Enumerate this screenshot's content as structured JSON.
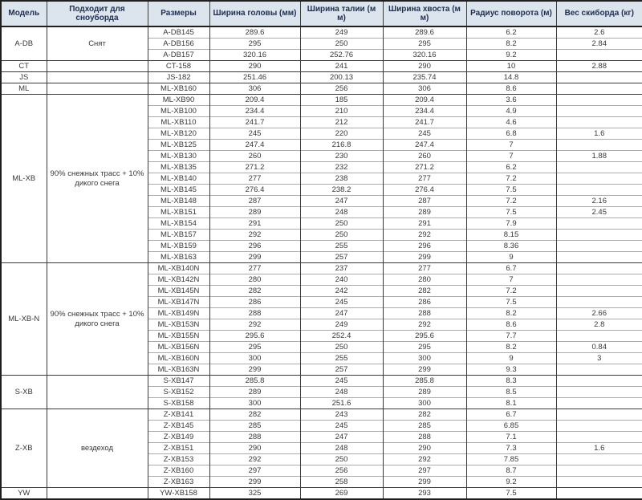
{
  "table": {
    "columns": [
      "Модель",
      "Подходит для сноуборда",
      "Размеры",
      "Ширина головы (мм)",
      "Ширина талии (м м)",
      "Ширина хвоста (м м)",
      "Радиус поворота (м)",
      "Вес скиборда (кг)"
    ],
    "groups": [
      {
        "model": "A-DB",
        "suitable": "Снят",
        "rows": [
          [
            "A-DB145",
            "289.6",
            "249",
            "289.6",
            "6.2",
            "2.6"
          ],
          [
            "A-DB156",
            "295",
            "250",
            "295",
            "8.2",
            "2.84"
          ],
          [
            "A-DB157",
            "320.16",
            "252.76",
            "320.16",
            "9.2",
            ""
          ]
        ]
      },
      {
        "model": "CT",
        "suitable": "",
        "rows": [
          [
            "CT-158",
            "290",
            "241",
            "290",
            "10",
            "2.88"
          ]
        ]
      },
      {
        "model": "JS",
        "suitable": "",
        "rows": [
          [
            "JS-182",
            "251.46",
            "200.13",
            "235.74",
            "14.8",
            ""
          ]
        ]
      },
      {
        "model": "ML",
        "suitable": "",
        "rows": [
          [
            "ML-XB160",
            "306",
            "256",
            "306",
            "8.6",
            ""
          ]
        ]
      },
      {
        "model": "ML-XB",
        "suitable": "90% снежных трасс + 10% дикого снега",
        "rows": [
          [
            "ML-XB90",
            "209.4",
            "185",
            "209.4",
            "3.6",
            ""
          ],
          [
            "ML-XB100",
            "234.4",
            "210",
            "234.4",
            "4.9",
            ""
          ],
          [
            "ML-XB110",
            "241.7",
            "212",
            "241.7",
            "4.6",
            ""
          ],
          [
            "ML-XB120",
            "245",
            "220",
            "245",
            "6.8",
            "1.6"
          ],
          [
            "ML-XB125",
            "247.4",
            "216.8",
            "247.4",
            "7",
            ""
          ],
          [
            "ML-XB130",
            "260",
            "230",
            "260",
            "7",
            "1.88"
          ],
          [
            "ML-XB135",
            "271.2",
            "232",
            "271.2",
            "6.2",
            ""
          ],
          [
            "ML-XB140",
            "277",
            "238",
            "277",
            "7.2",
            ""
          ],
          [
            "ML-XB145",
            "276.4",
            "238.2",
            "276.4",
            "7.5",
            ""
          ],
          [
            "ML-XB148",
            "287",
            "247",
            "287",
            "7.2",
            "2.16"
          ],
          [
            "ML-XB151",
            "289",
            "248",
            "289",
            "7.5",
            "2.45"
          ],
          [
            "ML-XB154",
            "291",
            "250",
            "291",
            "7.9",
            ""
          ],
          [
            "ML-XB157",
            "292",
            "250",
            "292",
            "8.15",
            ""
          ],
          [
            "ML-XB159",
            "296",
            "255",
            "296",
            "8.36",
            ""
          ],
          [
            "ML-XB163",
            "299",
            "257",
            "299",
            "9",
            ""
          ]
        ]
      },
      {
        "model": "ML-XB-N",
        "suitable": "90% снежных трасс + 10% дикого снега",
        "rows": [
          [
            "ML-XB140N",
            "277",
            "237",
            "277",
            "6.7",
            ""
          ],
          [
            "ML-XB142N",
            "280",
            "240",
            "280",
            "7",
            ""
          ],
          [
            "ML-XB145N",
            "282",
            "242",
            "282",
            "7.2",
            ""
          ],
          [
            "ML-XB147N",
            "286",
            "245",
            "286",
            "7.5",
            ""
          ],
          [
            "ML-XB149N",
            "288",
            "247",
            "288",
            "8.2",
            "2.66"
          ],
          [
            "ML-XB153N",
            "292",
            "249",
            "292",
            "8.6",
            "2.8"
          ],
          [
            "ML-XB155N",
            "295.6",
            "252.4",
            "295.6",
            "7.7",
            ""
          ],
          [
            "ML-XB156N",
            "295",
            "250",
            "295",
            "8.2",
            "0.84"
          ],
          [
            "ML-XB160N",
            "300",
            "255",
            "300",
            "9",
            "3"
          ],
          [
            "ML-XB163N",
            "299",
            "257",
            "299",
            "9.3",
            ""
          ]
        ]
      },
      {
        "model": "S-XB",
        "suitable": "",
        "rows": [
          [
            "S-XB147",
            "285.8",
            "245",
            "285.8",
            "8.3",
            ""
          ],
          [
            "S-XB152",
            "289",
            "248",
            "289",
            "8.5",
            ""
          ],
          [
            "S-XB158",
            "300",
            "251.6",
            "300",
            "8.1",
            ""
          ]
        ]
      },
      {
        "model": "Z-XB",
        "suitable": "вездеход",
        "rows": [
          [
            "Z-XB141",
            "282",
            "243",
            "282",
            "6.7",
            ""
          ],
          [
            "Z-XB145",
            "285",
            "245",
            "285",
            "6.85",
            ""
          ],
          [
            "Z-XB149",
            "288",
            "247",
            "288",
            "7.1",
            ""
          ],
          [
            "Z-XB151",
            "290",
            "248",
            "290",
            "7.3",
            "1.6"
          ],
          [
            "Z-XB153",
            "292",
            "250",
            "292",
            "7.85",
            ""
          ],
          [
            "Z-XB160",
            "297",
            "256",
            "297",
            "8.7",
            ""
          ],
          [
            "Z-XB163",
            "299",
            "258",
            "299",
            "9.2",
            ""
          ]
        ]
      },
      {
        "model": "YW",
        "suitable": "",
        "rows": [
          [
            "YW-XB158",
            "325",
            "269",
            "293",
            "7.5",
            ""
          ]
        ]
      }
    ]
  },
  "colors": {
    "header_bg": "#dce4ee",
    "header_text": "#20304f",
    "cell_text": "#383838",
    "grid_dark": "#3c3c3c",
    "grid_light": "#ababab"
  }
}
